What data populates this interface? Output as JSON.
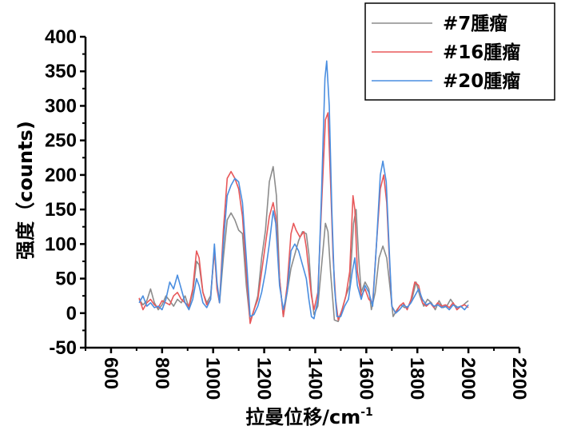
{
  "chart_data": {
    "type": "line",
    "xlabel_main": "拉曼位移/cm",
    "xlabel_sup": "-1",
    "ylabel": "强度（counts)",
    "xlim": [
      500,
      2200
    ],
    "ylim": [
      -50,
      400
    ],
    "x_ticks": [
      600,
      800,
      1000,
      1200,
      1400,
      1600,
      1800,
      2000,
      2200
    ],
    "y_ticks": [
      -50,
      0,
      50,
      100,
      150,
      200,
      250,
      300,
      350,
      400
    ],
    "legend_position": "top-right",
    "grid": false,
    "series": [
      {
        "name": "#7腫瘤",
        "color": "#8c8c8c",
        "points": [
          [
            710,
            20
          ],
          [
            725,
            12
          ],
          [
            740,
            18
          ],
          [
            755,
            35
          ],
          [
            770,
            15
          ],
          [
            785,
            5
          ],
          [
            800,
            12
          ],
          [
            815,
            25
          ],
          [
            830,
            18
          ],
          [
            845,
            10
          ],
          [
            860,
            20
          ],
          [
            875,
            15
          ],
          [
            890,
            25
          ],
          [
            905,
            8
          ],
          [
            920,
            30
          ],
          [
            935,
            75
          ],
          [
            945,
            70
          ],
          [
            960,
            30
          ],
          [
            975,
            15
          ],
          [
            990,
            25
          ],
          [
            1005,
            90
          ],
          [
            1015,
            40
          ],
          [
            1025,
            15
          ],
          [
            1040,
            80
          ],
          [
            1055,
            135
          ],
          [
            1070,
            145
          ],
          [
            1085,
            135
          ],
          [
            1100,
            120
          ],
          [
            1115,
            115
          ],
          [
            1130,
            40
          ],
          [
            1145,
            -12
          ],
          [
            1160,
            5
          ],
          [
            1175,
            25
          ],
          [
            1190,
            80
          ],
          [
            1205,
            120
          ],
          [
            1220,
            190
          ],
          [
            1235,
            212
          ],
          [
            1248,
            170
          ],
          [
            1260,
            50
          ],
          [
            1275,
            -5
          ],
          [
            1290,
            30
          ],
          [
            1305,
            65
          ],
          [
            1320,
            85
          ],
          [
            1335,
            105
          ],
          [
            1350,
            118
          ],
          [
            1365,
            115
          ],
          [
            1375,
            85
          ],
          [
            1385,
            30
          ],
          [
            1395,
            -2
          ],
          [
            1410,
            10
          ],
          [
            1425,
            70
          ],
          [
            1440,
            130
          ],
          [
            1450,
            118
          ],
          [
            1460,
            60
          ],
          [
            1475,
            -10
          ],
          [
            1490,
            -12
          ],
          [
            1505,
            5
          ],
          [
            1520,
            25
          ],
          [
            1535,
            40
          ],
          [
            1550,
            130
          ],
          [
            1560,
            150
          ],
          [
            1570,
            80
          ],
          [
            1580,
            30
          ],
          [
            1595,
            45
          ],
          [
            1610,
            35
          ],
          [
            1620,
            5
          ],
          [
            1635,
            30
          ],
          [
            1650,
            80
          ],
          [
            1665,
            97
          ],
          [
            1680,
            80
          ],
          [
            1695,
            30
          ],
          [
            1705,
            -5
          ],
          [
            1720,
            5
          ],
          [
            1735,
            12
          ],
          [
            1750,
            8
          ],
          [
            1765,
            10
          ],
          [
            1780,
            22
          ],
          [
            1795,
            45
          ],
          [
            1810,
            25
          ],
          [
            1825,
            10
          ],
          [
            1840,
            20
          ],
          [
            1855,
            15
          ],
          [
            1870,
            5
          ],
          [
            1885,
            18
          ],
          [
            1900,
            8
          ],
          [
            1915,
            10
          ],
          [
            1930,
            20
          ],
          [
            1945,
            12
          ],
          [
            1960,
            8
          ],
          [
            1975,
            10
          ],
          [
            1990,
            15
          ],
          [
            2000,
            18
          ]
        ]
      },
      {
        "name": "#16腫瘤",
        "color": "#e8585a",
        "points": [
          [
            710,
            22
          ],
          [
            725,
            5
          ],
          [
            740,
            15
          ],
          [
            755,
            20
          ],
          [
            770,
            12
          ],
          [
            785,
            8
          ],
          [
            800,
            18
          ],
          [
            815,
            15
          ],
          [
            830,
            12
          ],
          [
            845,
            25
          ],
          [
            860,
            30
          ],
          [
            875,
            20
          ],
          [
            890,
            15
          ],
          [
            905,
            10
          ],
          [
            920,
            35
          ],
          [
            935,
            90
          ],
          [
            945,
            80
          ],
          [
            960,
            30
          ],
          [
            975,
            12
          ],
          [
            990,
            20
          ],
          [
            1005,
            95
          ],
          [
            1015,
            35
          ],
          [
            1025,
            15
          ],
          [
            1040,
            120
          ],
          [
            1055,
            195
          ],
          [
            1070,
            205
          ],
          [
            1085,
            195
          ],
          [
            1100,
            180
          ],
          [
            1115,
            140
          ],
          [
            1130,
            60
          ],
          [
            1145,
            -15
          ],
          [
            1160,
            5
          ],
          [
            1175,
            20
          ],
          [
            1190,
            60
          ],
          [
            1205,
            100
          ],
          [
            1220,
            140
          ],
          [
            1235,
            160
          ],
          [
            1245,
            140
          ],
          [
            1260,
            50
          ],
          [
            1275,
            -5
          ],
          [
            1290,
            40
          ],
          [
            1305,
            115
          ],
          [
            1315,
            130
          ],
          [
            1325,
            120
          ],
          [
            1340,
            110
          ],
          [
            1355,
            118
          ],
          [
            1365,
            95
          ],
          [
            1375,
            60
          ],
          [
            1385,
            25
          ],
          [
            1395,
            5
          ],
          [
            1410,
            30
          ],
          [
            1425,
            160
          ],
          [
            1440,
            280
          ],
          [
            1450,
            290
          ],
          [
            1460,
            190
          ],
          [
            1470,
            80
          ],
          [
            1480,
            20
          ],
          [
            1490,
            -10
          ],
          [
            1505,
            5
          ],
          [
            1520,
            25
          ],
          [
            1535,
            60
          ],
          [
            1548,
            170
          ],
          [
            1555,
            150
          ],
          [
            1565,
            60
          ],
          [
            1580,
            25
          ],
          [
            1595,
            35
          ],
          [
            1610,
            20
          ],
          [
            1625,
            15
          ],
          [
            1640,
            100
          ],
          [
            1655,
            180
          ],
          [
            1668,
            200
          ],
          [
            1680,
            160
          ],
          [
            1690,
            80
          ],
          [
            1700,
            10
          ],
          [
            1715,
            0
          ],
          [
            1730,
            10
          ],
          [
            1745,
            15
          ],
          [
            1760,
            5
          ],
          [
            1775,
            20
          ],
          [
            1790,
            45
          ],
          [
            1805,
            40
          ],
          [
            1820,
            15
          ],
          [
            1835,
            10
          ],
          [
            1850,
            15
          ],
          [
            1865,
            8
          ],
          [
            1880,
            15
          ],
          [
            1895,
            10
          ],
          [
            1910,
            12
          ],
          [
            1925,
            8
          ],
          [
            1940,
            15
          ],
          [
            1955,
            5
          ],
          [
            1970,
            10
          ],
          [
            1985,
            12
          ],
          [
            2000,
            8
          ]
        ]
      },
      {
        "name": "#20腫瘤",
        "color": "#4a8ee0",
        "points": [
          [
            710,
            15
          ],
          [
            725,
            25
          ],
          [
            740,
            10
          ],
          [
            755,
            15
          ],
          [
            770,
            8
          ],
          [
            785,
            10
          ],
          [
            800,
            5
          ],
          [
            815,
            20
          ],
          [
            830,
            45
          ],
          [
            845,
            35
          ],
          [
            860,
            55
          ],
          [
            875,
            35
          ],
          [
            890,
            15
          ],
          [
            905,
            5
          ],
          [
            920,
            20
          ],
          [
            935,
            50
          ],
          [
            945,
            40
          ],
          [
            960,
            15
          ],
          [
            975,
            8
          ],
          [
            990,
            20
          ],
          [
            1005,
            100
          ],
          [
            1015,
            45
          ],
          [
            1025,
            15
          ],
          [
            1040,
            100
          ],
          [
            1055,
            170
          ],
          [
            1070,
            185
          ],
          [
            1085,
            195
          ],
          [
            1100,
            190
          ],
          [
            1115,
            160
          ],
          [
            1130,
            80
          ],
          [
            1145,
            -5
          ],
          [
            1160,
            -2
          ],
          [
            1175,
            10
          ],
          [
            1190,
            30
          ],
          [
            1205,
            60
          ],
          [
            1220,
            100
          ],
          [
            1235,
            148
          ],
          [
            1245,
            130
          ],
          [
            1260,
            40
          ],
          [
            1275,
            5
          ],
          [
            1290,
            30
          ],
          [
            1305,
            90
          ],
          [
            1320,
            100
          ],
          [
            1335,
            90
          ],
          [
            1350,
            70
          ],
          [
            1365,
            50
          ],
          [
            1375,
            20
          ],
          [
            1385,
            -5
          ],
          [
            1395,
            -8
          ],
          [
            1410,
            20
          ],
          [
            1425,
            180
          ],
          [
            1438,
            340
          ],
          [
            1445,
            365
          ],
          [
            1455,
            300
          ],
          [
            1465,
            150
          ],
          [
            1475,
            40
          ],
          [
            1485,
            -5
          ],
          [
            1500,
            -5
          ],
          [
            1515,
            10
          ],
          [
            1530,
            20
          ],
          [
            1545,
            60
          ],
          [
            1555,
            80
          ],
          [
            1565,
            40
          ],
          [
            1580,
            20
          ],
          [
            1595,
            40
          ],
          [
            1610,
            30
          ],
          [
            1625,
            10
          ],
          [
            1640,
            100
          ],
          [
            1655,
            200
          ],
          [
            1665,
            220
          ],
          [
            1678,
            190
          ],
          [
            1690,
            90
          ],
          [
            1700,
            10
          ],
          [
            1715,
            0
          ],
          [
            1730,
            5
          ],
          [
            1745,
            12
          ],
          [
            1760,
            8
          ],
          [
            1775,
            15
          ],
          [
            1790,
            25
          ],
          [
            1805,
            35
          ],
          [
            1820,
            20
          ],
          [
            1835,
            12
          ],
          [
            1850,
            15
          ],
          [
            1865,
            10
          ],
          [
            1880,
            12
          ],
          [
            1895,
            8
          ],
          [
            1910,
            10
          ],
          [
            1925,
            5
          ],
          [
            1940,
            12
          ],
          [
            1955,
            8
          ],
          [
            1970,
            10
          ],
          [
            1985,
            5
          ],
          [
            2000,
            12
          ]
        ]
      }
    ]
  }
}
